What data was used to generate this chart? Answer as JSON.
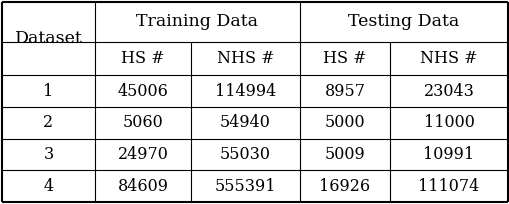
{
  "col_labels_row1_training": "Training Data",
  "col_labels_row1_testing": "Testing Data",
  "col_labels_row2": [
    "Dataset",
    "HS #",
    "NHS #",
    "HS #",
    "NHS #"
  ],
  "rows": [
    [
      "1",
      "45006",
      "114994",
      "8957",
      "23043"
    ],
    [
      "2",
      "5060",
      "54940",
      "5000",
      "11000"
    ],
    [
      "3",
      "24970",
      "55030",
      "5009",
      "10991"
    ],
    [
      "4",
      "84609",
      "555391",
      "16926",
      "111074"
    ]
  ],
  "background_color": "#ffffff",
  "text_color": "#000000",
  "font_size": 11.5,
  "header_font_size": 12.5
}
